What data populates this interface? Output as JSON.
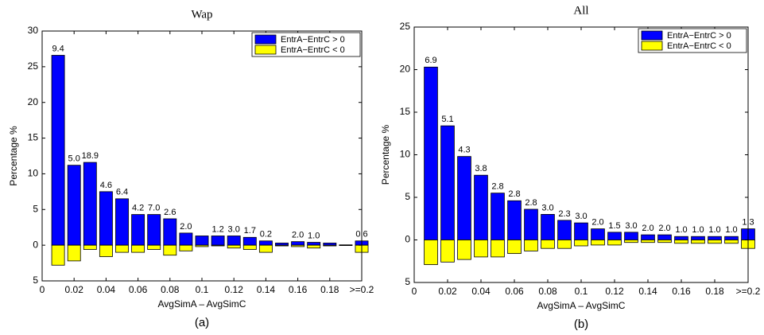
{
  "chart_data": [
    {
      "type": "bar",
      "title": "Wap",
      "xlabel": "AvgSimA – AvgSimC",
      "ylabel": "Percentage %",
      "caption": "(a)",
      "x": [
        0.01,
        0.02,
        0.03,
        0.04,
        0.05,
        0.06,
        0.07,
        0.08,
        0.09,
        0.1,
        0.11,
        0.12,
        0.13,
        0.14,
        0.15,
        0.16,
        0.17,
        0.18,
        0.19,
        0.2
      ],
      "series": [
        {
          "name": "EntrA−EntrC > 0",
          "color": "#0000ff",
          "values": [
            26.6,
            11.2,
            11.6,
            7.5,
            6.5,
            4.3,
            4.3,
            3.7,
            1.7,
            1.3,
            1.3,
            1.3,
            1.1,
            0.6,
            0.3,
            0.5,
            0.4,
            0.3,
            0.05,
            0.6
          ]
        },
        {
          "name": "EntrA−EntrC < 0",
          "color": "#ffff00",
          "values": [
            -2.8,
            -2.2,
            -0.6,
            -1.6,
            -1.0,
            -1.0,
            -0.6,
            -1.4,
            -0.8,
            -0.2,
            -0.1,
            -0.4,
            -0.6,
            -1.0,
            -0.1,
            -0.2,
            -0.4,
            -0.1,
            -0.05,
            -1.0
          ]
        }
      ],
      "bar_labels": [
        "9.4",
        "5.0",
        "18.9",
        "4.6",
        "6.4",
        "4.2",
        "7.0",
        "2.6",
        "2.0",
        null,
        "1.2",
        "3.0",
        "1.7",
        "0.2",
        null,
        "2.0",
        "1.0",
        null,
        null,
        "0.6"
      ],
      "xlim": [
        0,
        0.2
      ],
      "xticks": [
        0,
        0.02,
        0.04,
        0.06,
        0.08,
        0.1,
        0.12,
        0.14,
        0.16,
        0.18,
        {
          "value": 0.2,
          "label": ">=0.2"
        }
      ],
      "ylim": [
        -5,
        30
      ],
      "yticks": [
        {
          "value": -5,
          "label": "5"
        },
        0,
        5,
        10,
        15,
        20,
        25,
        30
      ],
      "legend": "upper right"
    },
    {
      "type": "bar",
      "title": "All",
      "xlabel": "AvgSimA – AvgSimC",
      "ylabel": "Percentage %",
      "caption": "(b)",
      "x": [
        0.01,
        0.02,
        0.03,
        0.04,
        0.05,
        0.06,
        0.07,
        0.08,
        0.09,
        0.1,
        0.11,
        0.12,
        0.13,
        0.14,
        0.15,
        0.16,
        0.17,
        0.18,
        0.19,
        0.2
      ],
      "series": [
        {
          "name": "EntrA−EntrC > 0",
          "color": "#0000ff",
          "values": [
            20.3,
            13.4,
            9.8,
            7.6,
            5.5,
            4.6,
            3.6,
            3.0,
            2.3,
            2.0,
            1.3,
            0.9,
            0.9,
            0.6,
            0.6,
            0.4,
            0.4,
            0.4,
            0.4,
            1.3
          ]
        },
        {
          "name": "EntrA−EntrC < 0",
          "color": "#ffff00",
          "values": [
            -2.9,
            -2.6,
            -2.3,
            -2.0,
            -2.0,
            -1.6,
            -1.3,
            -1.0,
            -1.0,
            -0.7,
            -0.6,
            -0.6,
            -0.3,
            -0.3,
            -0.3,
            -0.4,
            -0.4,
            -0.4,
            -0.4,
            -1.0
          ]
        }
      ],
      "bar_labels": [
        "6.9",
        "5.1",
        "4.3",
        "3.8",
        "2.8",
        "2.8",
        "2.8",
        "3.0",
        "2.3",
        "3.0",
        "2.0",
        "1.5",
        "3.0",
        "2.0",
        "2.0",
        "1.0",
        "1.0",
        "1.0",
        "1.0",
        "1.3"
      ],
      "xlim": [
        0,
        0.2
      ],
      "xticks": [
        0,
        0.02,
        0.04,
        0.06,
        0.08,
        0.1,
        0.12,
        0.14,
        0.16,
        0.18,
        {
          "value": 0.2,
          "label": ">=0.2"
        }
      ],
      "ylim": [
        -5,
        25
      ],
      "yticks": [
        {
          "value": -5,
          "label": "5"
        },
        0,
        5,
        10,
        15,
        20,
        25
      ],
      "legend": "upper right"
    }
  ]
}
